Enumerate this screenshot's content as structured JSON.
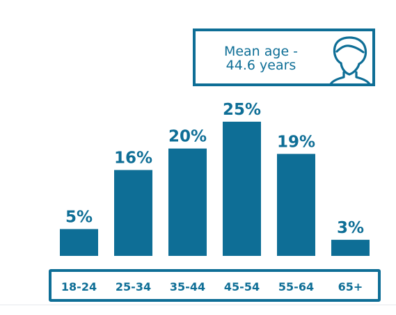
{
  "mean_age": {
    "line1": "Mean age -",
    "line2": "44.6 years",
    "icon": "person-head-icon"
  },
  "colors": {
    "accent": "#0e6e96",
    "bar": "#0e6e96"
  },
  "chart_data": {
    "type": "bar",
    "categories": [
      "18-24",
      "25-34",
      "35-44",
      "45-54",
      "55-64",
      "65+"
    ],
    "values": [
      5,
      16,
      20,
      25,
      19,
      3
    ],
    "value_labels": [
      "5%",
      "16%",
      "20%",
      "25%",
      "19%",
      "3%"
    ],
    "ylim": [
      0,
      25
    ],
    "grid": false,
    "legend": "none"
  }
}
